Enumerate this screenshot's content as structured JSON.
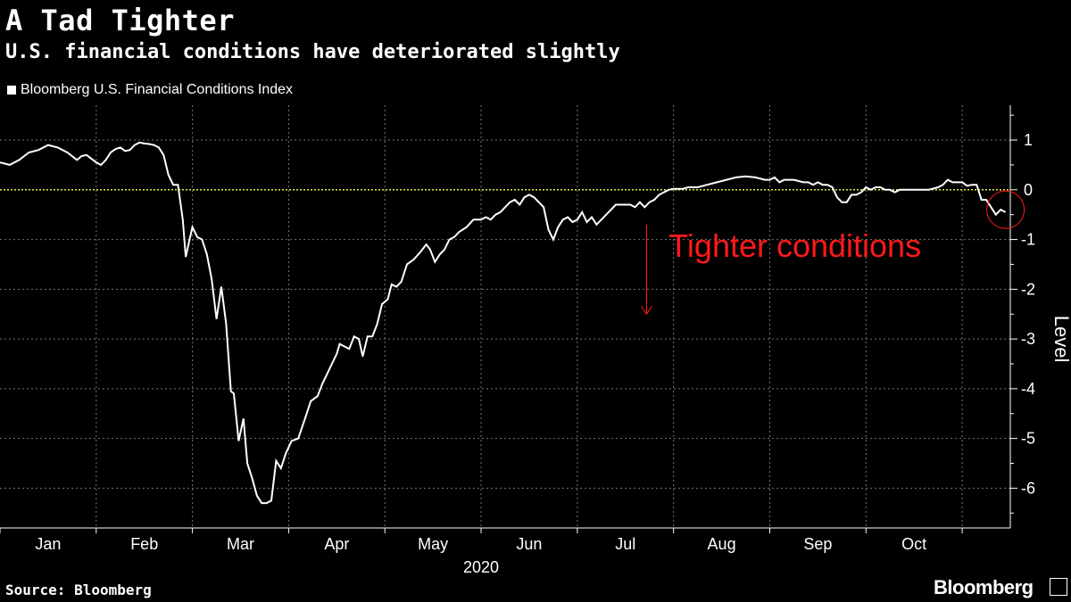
{
  "header": {
    "title": "A Tad Tighter",
    "subtitle": "U.S. financial conditions have deteriorated slightly"
  },
  "footer": {
    "source": "Source: Bloomberg",
    "brand": "Bloomberg"
  },
  "colors": {
    "background": "#000000",
    "line": "#ffffff",
    "zero_line": "#e8e84a",
    "annotation": "#ff1a1a",
    "grid": "#777777"
  },
  "chart_data": {
    "type": "line",
    "title": "A Tad Tighter",
    "subtitle": "U.S. financial conditions have deteriorated slightly",
    "xlabel": "2020",
    "ylabel": "Level",
    "x_tick_labels": [
      "Jan",
      "Feb",
      "Mar",
      "Apr",
      "May",
      "Jun",
      "Jul",
      "Aug",
      "Sep",
      "Oct"
    ],
    "y_ticks": [
      1,
      0,
      -1,
      -2,
      -3,
      -4,
      -5,
      -6
    ],
    "ylim": [
      -6.8,
      1.7
    ],
    "xlim_months": [
      0,
      10.5
    ],
    "grid": true,
    "legend": "top-left",
    "annotation": "Tighter conditions",
    "series": [
      {
        "name": "Bloomberg U.S. Financial Conditions Index",
        "points": [
          [
            0.0,
            0.55
          ],
          [
            0.1,
            0.5
          ],
          [
            0.2,
            0.6
          ],
          [
            0.3,
            0.75
          ],
          [
            0.4,
            0.8
          ],
          [
            0.45,
            0.85
          ],
          [
            0.5,
            0.9
          ],
          [
            0.6,
            0.85
          ],
          [
            0.7,
            0.75
          ],
          [
            0.8,
            0.6
          ],
          [
            0.85,
            0.68
          ],
          [
            0.9,
            0.7
          ],
          [
            1.0,
            0.55
          ],
          [
            1.05,
            0.5
          ],
          [
            1.1,
            0.6
          ],
          [
            1.15,
            0.75
          ],
          [
            1.2,
            0.82
          ],
          [
            1.25,
            0.85
          ],
          [
            1.3,
            0.78
          ],
          [
            1.35,
            0.8
          ],
          [
            1.4,
            0.9
          ],
          [
            1.45,
            0.95
          ],
          [
            1.5,
            0.93
          ],
          [
            1.55,
            0.92
          ],
          [
            1.6,
            0.9
          ],
          [
            1.65,
            0.85
          ],
          [
            1.7,
            0.7
          ],
          [
            1.75,
            0.3
          ],
          [
            1.8,
            0.1
          ],
          [
            1.85,
            0.1
          ],
          [
            1.9,
            -0.6
          ],
          [
            1.93,
            -1.35
          ],
          [
            1.97,
            -1.0
          ],
          [
            2.0,
            -0.75
          ],
          [
            2.05,
            -0.95
          ],
          [
            2.1,
            -1.0
          ],
          [
            2.15,
            -1.3
          ],
          [
            2.2,
            -1.8
          ],
          [
            2.25,
            -2.6
          ],
          [
            2.3,
            -1.95
          ],
          [
            2.35,
            -2.7
          ],
          [
            2.4,
            -4.05
          ],
          [
            2.43,
            -4.1
          ],
          [
            2.48,
            -5.05
          ],
          [
            2.53,
            -4.6
          ],
          [
            2.57,
            -5.5
          ],
          [
            2.62,
            -5.8
          ],
          [
            2.67,
            -6.15
          ],
          [
            2.72,
            -6.3
          ],
          [
            2.77,
            -6.3
          ],
          [
            2.82,
            -6.25
          ],
          [
            2.87,
            -5.45
          ],
          [
            2.92,
            -5.6
          ],
          [
            2.97,
            -5.3
          ],
          [
            3.03,
            -5.05
          ],
          [
            3.1,
            -5.0
          ],
          [
            3.17,
            -4.6
          ],
          [
            3.23,
            -4.25
          ],
          [
            3.3,
            -4.15
          ],
          [
            3.35,
            -3.9
          ],
          [
            3.4,
            -3.7
          ],
          [
            3.45,
            -3.5
          ],
          [
            3.5,
            -3.3
          ],
          [
            3.53,
            -3.1
          ],
          [
            3.58,
            -3.15
          ],
          [
            3.63,
            -3.2
          ],
          [
            3.68,
            -2.95
          ],
          [
            3.73,
            -3.0
          ],
          [
            3.77,
            -3.35
          ],
          [
            3.82,
            -2.95
          ],
          [
            3.87,
            -2.95
          ],
          [
            3.92,
            -2.7
          ],
          [
            3.97,
            -2.3
          ],
          [
            4.03,
            -2.2
          ],
          [
            4.07,
            -1.9
          ],
          [
            4.12,
            -1.95
          ],
          [
            4.17,
            -1.85
          ],
          [
            4.23,
            -1.5
          ],
          [
            4.3,
            -1.4
          ],
          [
            4.37,
            -1.25
          ],
          [
            4.43,
            -1.1
          ],
          [
            4.47,
            -1.2
          ],
          [
            4.52,
            -1.45
          ],
          [
            4.57,
            -1.3
          ],
          [
            4.62,
            -1.2
          ],
          [
            4.67,
            -1.0
          ],
          [
            4.72,
            -0.95
          ],
          [
            4.77,
            -0.85
          ],
          [
            4.85,
            -0.75
          ],
          [
            4.92,
            -0.6
          ],
          [
            5.0,
            -0.6
          ],
          [
            5.05,
            -0.55
          ],
          [
            5.1,
            -0.6
          ],
          [
            5.15,
            -0.5
          ],
          [
            5.2,
            -0.45
          ],
          [
            5.25,
            -0.35
          ],
          [
            5.3,
            -0.25
          ],
          [
            5.35,
            -0.2
          ],
          [
            5.4,
            -0.3
          ],
          [
            5.45,
            -0.15
          ],
          [
            5.5,
            -0.1
          ],
          [
            5.55,
            -0.15
          ],
          [
            5.6,
            -0.25
          ],
          [
            5.65,
            -0.35
          ],
          [
            5.7,
            -0.8
          ],
          [
            5.75,
            -1.0
          ],
          [
            5.8,
            -0.75
          ],
          [
            5.85,
            -0.6
          ],
          [
            5.9,
            -0.55
          ],
          [
            5.95,
            -0.65
          ],
          [
            6.0,
            -0.6
          ],
          [
            6.05,
            -0.45
          ],
          [
            6.1,
            -0.65
          ],
          [
            6.15,
            -0.55
          ],
          [
            6.2,
            -0.7
          ],
          [
            6.25,
            -0.6
          ],
          [
            6.3,
            -0.5
          ],
          [
            6.35,
            -0.4
          ],
          [
            6.4,
            -0.3
          ],
          [
            6.5,
            -0.3
          ],
          [
            6.55,
            -0.3
          ],
          [
            6.6,
            -0.35
          ],
          [
            6.65,
            -0.25
          ],
          [
            6.7,
            -0.35
          ],
          [
            6.75,
            -0.25
          ],
          [
            6.8,
            -0.2
          ],
          [
            6.85,
            -0.1
          ],
          [
            6.9,
            -0.05
          ],
          [
            6.95,
            0.0
          ],
          [
            7.0,
            0.02
          ],
          [
            7.1,
            0.02
          ],
          [
            7.15,
            0.05
          ],
          [
            7.25,
            0.05
          ],
          [
            7.35,
            0.1
          ],
          [
            7.45,
            0.15
          ],
          [
            7.55,
            0.2
          ],
          [
            7.65,
            0.25
          ],
          [
            7.75,
            0.27
          ],
          [
            7.85,
            0.25
          ],
          [
            7.95,
            0.2
          ],
          [
            8.0,
            0.2
          ],
          [
            8.05,
            0.25
          ],
          [
            8.1,
            0.15
          ],
          [
            8.15,
            0.2
          ],
          [
            8.25,
            0.2
          ],
          [
            8.35,
            0.15
          ],
          [
            8.4,
            0.15
          ],
          [
            8.45,
            0.1
          ],
          [
            8.5,
            0.15
          ],
          [
            8.55,
            0.1
          ],
          [
            8.6,
            0.1
          ],
          [
            8.65,
            0.05
          ],
          [
            8.7,
            -0.15
          ],
          [
            8.75,
            -0.25
          ],
          [
            8.8,
            -0.25
          ],
          [
            8.85,
            -0.1
          ],
          [
            8.9,
            -0.1
          ],
          [
            8.95,
            -0.05
          ],
          [
            9.0,
            0.05
          ],
          [
            9.05,
            0.0
          ],
          [
            9.1,
            0.05
          ],
          [
            9.15,
            0.05
          ],
          [
            9.2,
            0.0
          ],
          [
            9.25,
            0.0
          ],
          [
            9.3,
            -0.05
          ],
          [
            9.35,
            0.0
          ],
          [
            9.45,
            0.0
          ],
          [
            9.55,
            0.0
          ],
          [
            9.65,
            0.0
          ],
          [
            9.75,
            0.05
          ],
          [
            9.8,
            0.1
          ],
          [
            9.85,
            0.2
          ],
          [
            9.9,
            0.15
          ],
          [
            9.95,
            0.15
          ],
          [
            10.0,
            0.15
          ],
          [
            10.05,
            0.08
          ],
          [
            10.1,
            0.1
          ],
          [
            10.15,
            0.1
          ],
          [
            10.2,
            -0.2
          ],
          [
            10.25,
            -0.2
          ],
          [
            10.3,
            -0.35
          ],
          [
            10.35,
            -0.5
          ],
          [
            10.4,
            -0.4
          ],
          [
            10.45,
            -0.45
          ]
        ]
      }
    ]
  }
}
